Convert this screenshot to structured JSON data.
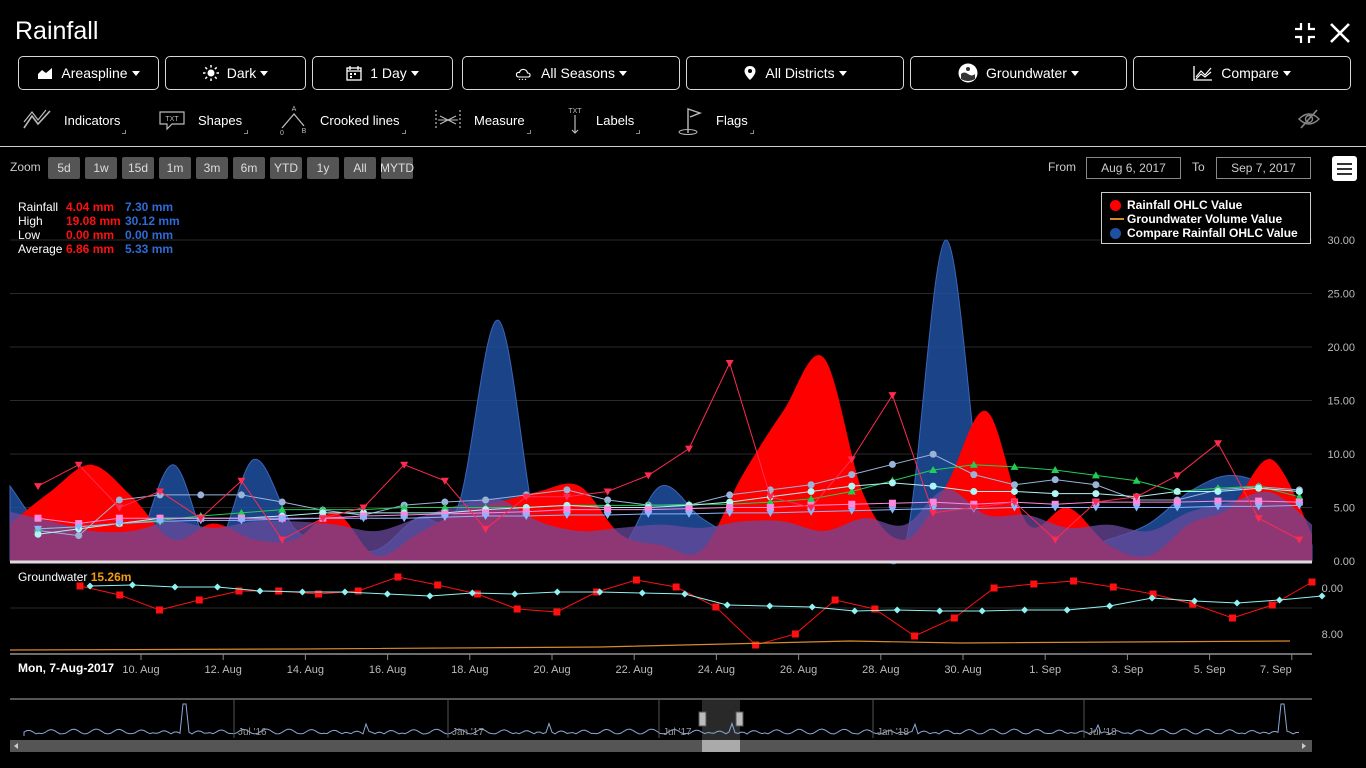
{
  "app": {
    "title": "Rainfall"
  },
  "toolbar": {
    "chart_type": "Areaspline",
    "theme": "Dark",
    "period": "1 Day",
    "season": "All Seasons",
    "district": "All Districts",
    "groundwater": "Groundwater",
    "compare": "Compare"
  },
  "tools": {
    "indicators": "Indicators",
    "shapes": "Shapes",
    "crooked_lines": "Crooked lines",
    "measure": "Measure",
    "labels": "Labels",
    "flags": "Flags",
    "shapes_icon_text": "TXT",
    "labels_icon_text": "TXT",
    "crooked_a": "A",
    "crooked_b": "B",
    "crooked_0": "0"
  },
  "zoom": {
    "label": "Zoom",
    "buttons": [
      "5d",
      "1w",
      "15d",
      "1m",
      "3m",
      "6m",
      "YTD",
      "1y",
      "All",
      "MYTD"
    ]
  },
  "range": {
    "from_label": "From",
    "from": "Aug 6, 2017",
    "to_label": "To",
    "to": "Sep 7, 2017"
  },
  "stats": {
    "rows": [
      {
        "label": "Rainfall",
        "red": "4.04 mm",
        "blue": "7.30 mm"
      },
      {
        "label": "High",
        "red": "19.08 mm",
        "blue": "30.12 mm"
      },
      {
        "label": "Low",
        "red": "0.00 mm",
        "blue": "0.00 mm"
      },
      {
        "label": "Average",
        "red": "6.86 mm",
        "blue": "5.33 mm"
      }
    ]
  },
  "legend": [
    {
      "label": "Rainfall OHLC Value",
      "color": "#ff0000"
    },
    {
      "label": "Groundwater Volume Value",
      "color": "#d68a2b"
    },
    {
      "label": "Compare Rainfall OHLC Value",
      "color": "#1f4fa0"
    }
  ],
  "groundwater": {
    "label": "Groundwater",
    "value": "15.26m"
  },
  "hover_date": "Mon, 7-Aug-2017",
  "navigator_labels": [
    "Jul '16",
    "Jan '17",
    "Jul '17",
    "Jan '18",
    "Jul '18"
  ],
  "chart_data": {
    "type": "area",
    "title": "",
    "x": [
      "6. Aug",
      "7. Aug",
      "8. Aug",
      "9. Aug",
      "10. Aug",
      "11. Aug",
      "12. Aug",
      "13. Aug",
      "14. Aug",
      "15. Aug",
      "16. Aug",
      "17. Aug",
      "18. Aug",
      "19. Aug",
      "20. Aug",
      "21. Aug",
      "22. Aug",
      "23. Aug",
      "24. Aug",
      "25. Aug",
      "26. Aug",
      "27. Aug",
      "28. Aug",
      "29. Aug",
      "30. Aug",
      "31. Aug",
      "1. Sep",
      "2. Sep",
      "3. Sep",
      "4. Sep",
      "5. Sep",
      "6. Sep",
      "7. Sep"
    ],
    "x_tick_labels": [
      "10. Aug",
      "12. Aug",
      "14. Aug",
      "16. Aug",
      "18. Aug",
      "20. Aug",
      "22. Aug",
      "24. Aug",
      "26. Aug",
      "28. Aug",
      "30. Aug",
      "1. Sep",
      "3. Sep",
      "5. Sep",
      "7. Sep"
    ],
    "y_tick_labels": [
      "0.00",
      "5.00",
      "10.00",
      "15.00",
      "20.00",
      "25.00",
      "30.00"
    ],
    "ylim": [
      0,
      30
    ],
    "gw_tick_labels": [
      "0.00",
      "8.00"
    ],
    "series": [
      {
        "name": "Rainfall OHLC Value",
        "color": "#ff0000",
        "values": [
          3.5,
          6.5,
          9.0,
          6.0,
          2.0,
          3.5,
          2.0,
          2.0,
          4.5,
          0.5,
          2.5,
          4.5,
          5.5,
          6.5,
          7.0,
          2.5,
          1.5,
          1.0,
          8.0,
          14.0,
          19.0,
          6.0,
          2.0,
          7.0,
          14.0,
          3.5,
          5.0,
          1.5,
          0.5,
          3.5,
          5.0,
          9.5,
          2.5
        ]
      },
      {
        "name": "Compare Rainfall OHLC Value",
        "color": "#1f4fa0",
        "values": [
          7.0,
          2.0,
          0.5,
          0.5,
          9.0,
          1.0,
          9.5,
          3.0,
          1.5,
          1.0,
          4.0,
          5.0,
          22.5,
          2.0,
          0.5,
          1.0,
          7.0,
          4.0,
          2.0,
          2.0,
          0.5,
          2.5,
          1.5,
          30.0,
          3.0,
          3.0,
          1.0,
          2.0,
          3.5,
          6.5,
          8.0,
          6.5,
          1.5
        ]
      }
    ]
  },
  "colors": {
    "rainfall": "#ff0000",
    "compare": "#1f4fa0",
    "groundwater": "#d68a2b",
    "accent_green": "#22cc55",
    "accent_cyan": "#8ff3f3"
  }
}
